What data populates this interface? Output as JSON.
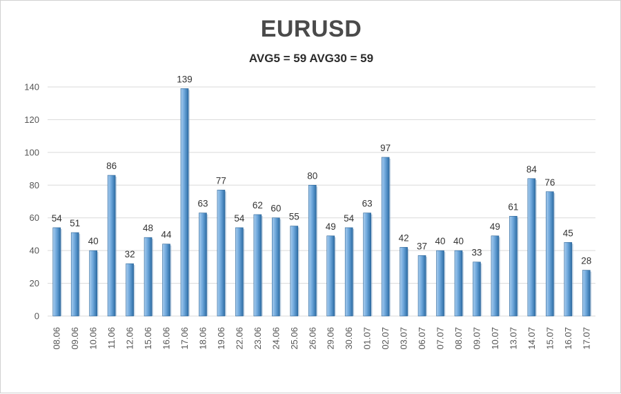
{
  "chart_data": {
    "type": "bar",
    "title": "EURUSD",
    "subtitle": "AVG5 = 59 AVG30 = 59",
    "xlabel": "",
    "ylabel": "",
    "ylim": [
      0,
      140
    ],
    "yticks": [
      0,
      20,
      40,
      60,
      80,
      100,
      120,
      140
    ],
    "grid": true,
    "categories": [
      "08.06",
      "09.06",
      "10.06",
      "11.06",
      "12.06",
      "15.06",
      "16.06",
      "17.06",
      "18.06",
      "19.06",
      "22.06",
      "23.06",
      "24.06",
      "25.06",
      "26.06",
      "29.06",
      "30.06",
      "01.07",
      "02.07",
      "03.07",
      "06.07",
      "07.07",
      "08.07",
      "09.07",
      "10.07",
      "13.07",
      "14.07",
      "15.07",
      "16.07",
      "17.07"
    ],
    "values": [
      54,
      51,
      40,
      86,
      32,
      48,
      44,
      139,
      63,
      77,
      54,
      62,
      60,
      55,
      80,
      49,
      54,
      63,
      97,
      42,
      37,
      40,
      40,
      33,
      49,
      61,
      84,
      76,
      45,
      28
    ],
    "colors": {
      "bar_light": "#a9cdee",
      "bar_mid": "#5b9bd5",
      "bar_dark": "#2e6ea6",
      "grid": "#d9d9d9"
    }
  }
}
